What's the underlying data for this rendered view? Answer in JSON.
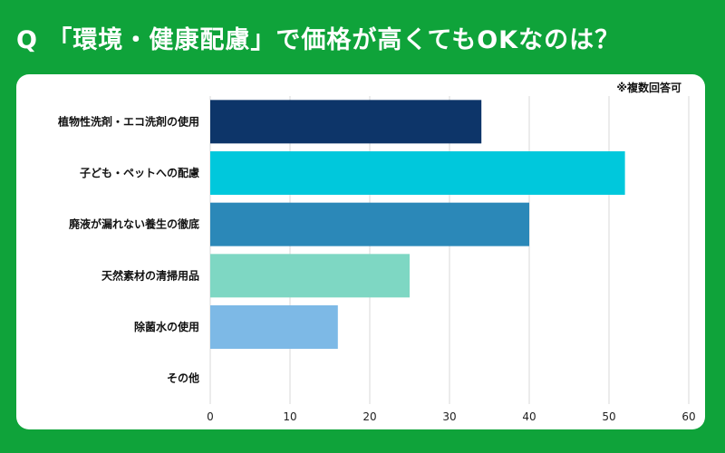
{
  "header": {
    "title": "Q 「環境・健康配慮」で価格が高くてもOKなのは？"
  },
  "note": "※複数回答可",
  "chart_data": {
    "type": "bar",
    "orientation": "horizontal",
    "categories": [
      "植物性洗剤・エコ洗剤の使用",
      "子ども・ペットへの配慮",
      "廃液が漏れない養生の徹底",
      "天然素材の清掃用品",
      "除菌水の使用",
      "その他"
    ],
    "values": [
      34,
      52,
      40,
      25,
      16,
      0
    ],
    "colors": [
      "#0d3569",
      "#00c8dc",
      "#2b88b8",
      "#7ed7c3",
      "#7db9e6",
      "#cccccc"
    ],
    "xlim": [
      0,
      60
    ],
    "xticks": [
      0,
      10,
      20,
      30,
      40,
      50,
      60
    ],
    "grid": true
  }
}
